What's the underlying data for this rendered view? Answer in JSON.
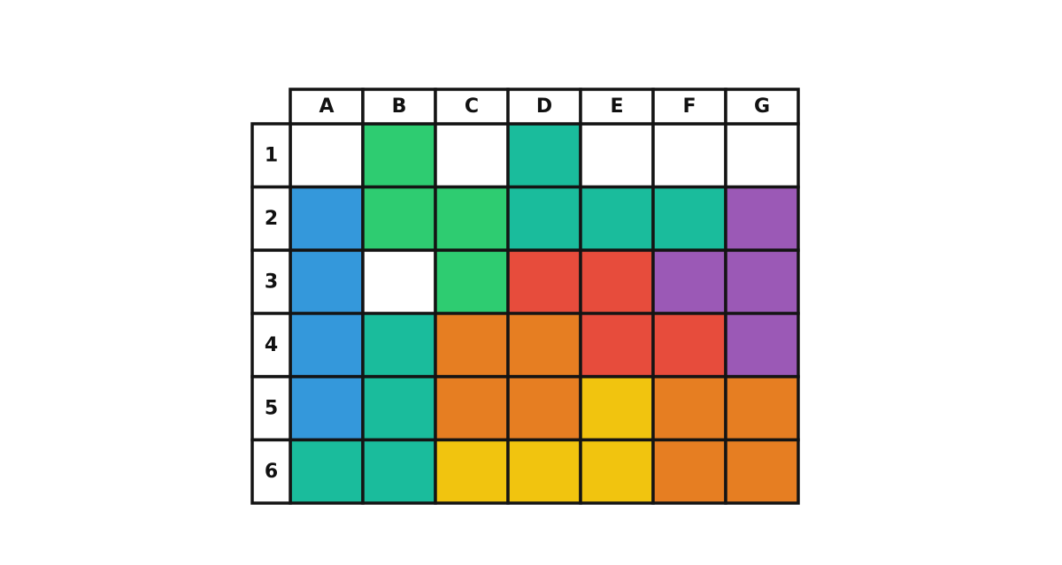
{
  "grid": {
    "columns": [
      "A",
      "B",
      "C",
      "D",
      "E",
      "F",
      "G"
    ],
    "rows": [
      "1",
      "2",
      "3",
      "4",
      "5",
      "6"
    ],
    "cells": [
      [
        "#ffffff",
        "#2ecc71",
        "#ffffff",
        "#1abc9c",
        "#ffffff",
        "#ffffff",
        "#ffffff"
      ],
      [
        "#3498db",
        "#2ecc71",
        "#2ecc71",
        "#1abc9c",
        "#1abc9c",
        "#1abc9c",
        "#9b59b6"
      ],
      [
        "#3498db",
        "#ffffff",
        "#2ecc71",
        "#e74c3c",
        "#e74c3c",
        "#9b59b6",
        "#9b59b6"
      ],
      [
        "#3498db",
        "#1abc9c",
        "#e67e22",
        "#e67e22",
        "#e74c3c",
        "#e74c3c",
        "#9b59b6"
      ],
      [
        "#3498db",
        "#1abc9c",
        "#e67e22",
        "#e67e22",
        "#f1c40f",
        "#e67e22",
        "#e67e22"
      ],
      [
        "#1abc9c",
        "#1abc9c",
        "#f1c40f",
        "#f1c40f",
        "#f1c40f",
        "#e67e22",
        "#e67e22"
      ]
    ]
  }
}
